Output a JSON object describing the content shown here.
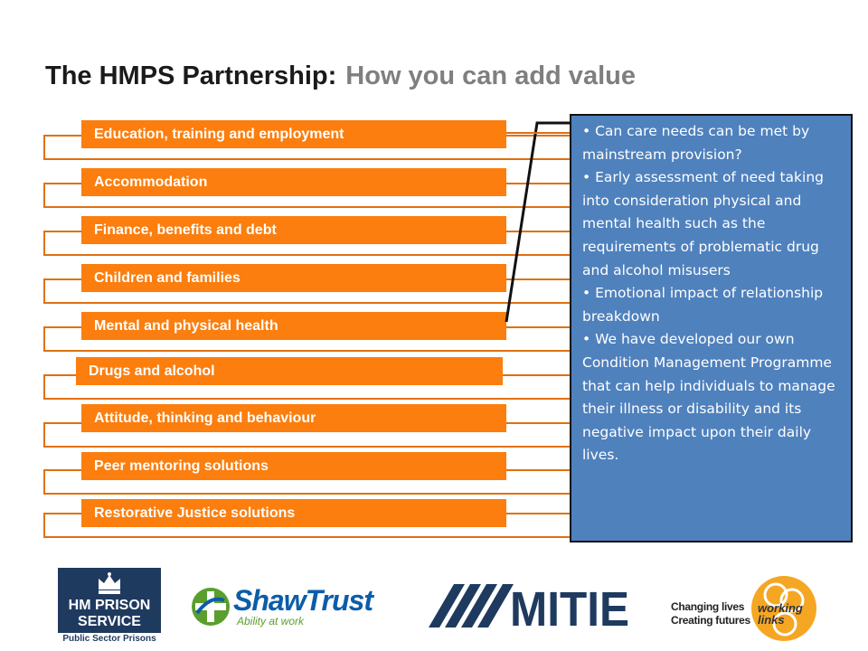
{
  "title": {
    "main": "The HMPS Partnership:",
    "sub": "How you can add value"
  },
  "pathways": [
    "Education, training and employment",
    "Accommodation",
    "Finance, benefits and debt",
    "Children and families",
    "Mental and physical health",
    "Drugs and alcohol",
    "Attitude, thinking and behaviour",
    "Peer mentoring solutions",
    "Restorative Justice solutions"
  ],
  "panel": {
    "bullets": [
      "• Can care needs can be met by mainstream provision?",
      "• Early assessment of need taking into consideration physical and mental health such as the requirements of problematic drug and alcohol misusers",
      "• Emotional impact of relationship breakdown",
      "• We have developed our own Condition Management Programme that can help individuals to manage their illness or disability and its negative impact upon their daily lives."
    ]
  },
  "logos": {
    "hmps": {
      "line1": "HM PRISON",
      "line2": "SERVICE",
      "line3": "Public Sector Prisons"
    },
    "shaw": {
      "name": "ShawTrust",
      "tagline": "Ability at work"
    },
    "mitie": {
      "name": "MITIE"
    },
    "working_links": {
      "slogan1": "Changing lives",
      "slogan2": "Creating futures",
      "name": "working links"
    }
  },
  "colors": {
    "bar": "#fb7e0e",
    "panel": "#4f81bd",
    "title_main": "#1a1a1a",
    "title_sub": "#7f7f7f"
  }
}
